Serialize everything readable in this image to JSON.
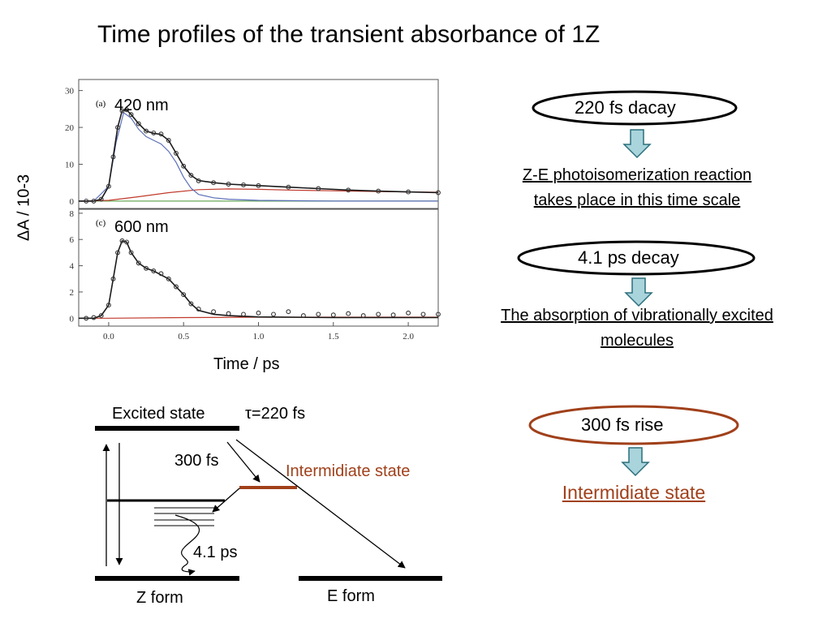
{
  "title": "Time profiles of the transient absorbance of 1Z",
  "axes": {
    "ylabel": "ΔA / 10-3",
    "xlabel": "Time / ps"
  },
  "colors": {
    "data_points": "#333333",
    "fit_total": "#1a1a1a",
    "fit_decay_component": "#5a6fb8",
    "fit_rise_component": "#c0392b",
    "baseline": "#6aaa5a",
    "arrow_fill": "#a9d4dc",
    "arrow_stroke": "#2b6f7c",
    "intermediate": "#a0401a"
  },
  "chart_data": [
    {
      "type": "line",
      "panel_tag": "(a)",
      "panel_label": "420 nm",
      "ylim": [
        -2,
        33
      ],
      "xlim": [
        -0.2,
        2.2
      ],
      "y_ticks": [
        "0",
        "10",
        "20",
        "30"
      ],
      "x_ticks": [],
      "grid": false,
      "series": [
        {
          "style": "markers",
          "x": [
            -0.15,
            -0.1,
            -0.05,
            0.0,
            0.03,
            0.06,
            0.09,
            0.12,
            0.15,
            0.2,
            0.25,
            0.3,
            0.35,
            0.4,
            0.45,
            0.5,
            0.55,
            0.6,
            0.7,
            0.8,
            0.9,
            1.0,
            1.2,
            1.4,
            1.6,
            1.8,
            2.0,
            2.2
          ],
          "y": [
            0,
            0,
            0.5,
            4,
            12,
            20,
            24.5,
            24.8,
            23.5,
            21,
            19,
            18.5,
            18.2,
            16.5,
            13,
            9.5,
            7,
            5.5,
            5,
            4.6,
            4.4,
            4.2,
            3.8,
            3.4,
            3,
            2.7,
            2.5,
            2.3
          ]
        },
        {
          "style": "line",
          "role": "fit",
          "x": [
            -0.2,
            -0.1,
            -0.05,
            0.0,
            0.03,
            0.06,
            0.09,
            0.12,
            0.15,
            0.2,
            0.25,
            0.3,
            0.35,
            0.4,
            0.45,
            0.5,
            0.55,
            0.6,
            0.7,
            0.8,
            0.9,
            1.0,
            1.2,
            1.4,
            1.6,
            1.8,
            2.0,
            2.2
          ],
          "y": [
            0,
            0,
            0.5,
            4,
            12,
            20,
            24.5,
            24.7,
            23.5,
            21,
            19,
            18.4,
            18.1,
            16.5,
            13,
            9.5,
            7,
            5.6,
            5,
            4.6,
            4.4,
            4.2,
            3.8,
            3.4,
            3,
            2.7,
            2.5,
            2.3
          ]
        },
        {
          "style": "line",
          "role": "decay",
          "x": [
            -0.2,
            -0.1,
            0.0,
            0.05,
            0.1,
            0.15,
            0.2,
            0.25,
            0.3,
            0.35,
            0.4,
            0.45,
            0.5,
            0.55,
            0.6,
            0.7,
            0.8,
            1.0,
            1.5,
            2.2
          ],
          "y": [
            0,
            0,
            4,
            16,
            24,
            22.5,
            19.5,
            17.5,
            16.5,
            15.5,
            13.5,
            10.5,
            6.5,
            3.5,
            1.8,
            0.9,
            0.5,
            0.2,
            0,
            0
          ]
        },
        {
          "style": "line",
          "role": "rise",
          "x": [
            -0.2,
            0.0,
            0.2,
            0.4,
            0.6,
            0.8,
            1.0,
            1.2,
            1.5,
            1.8,
            2.2
          ],
          "y": [
            0,
            0.2,
            1.2,
            2.3,
            3.1,
            3.3,
            3.2,
            3.0,
            2.8,
            2.6,
            2.4
          ]
        },
        {
          "style": "line",
          "role": "baseline",
          "x": [
            -0.2,
            2.2
          ],
          "y": [
            0,
            0
          ]
        }
      ]
    },
    {
      "type": "line",
      "panel_tag": "(c)",
      "panel_label": "600 nm",
      "ylim": [
        -0.6,
        8.3
      ],
      "xlim": [
        -0.2,
        2.2
      ],
      "y_ticks": [
        "0",
        "2",
        "4",
        "6",
        "8"
      ],
      "x_ticks": [
        "0.0",
        "0.5",
        "1.0",
        "1.5",
        "2.0"
      ],
      "grid": false,
      "series": [
        {
          "style": "markers",
          "x": [
            -0.15,
            -0.1,
            -0.05,
            0.0,
            0.03,
            0.06,
            0.09,
            0.12,
            0.15,
            0.2,
            0.25,
            0.3,
            0.35,
            0.4,
            0.45,
            0.5,
            0.55,
            0.6,
            0.7,
            0.8,
            0.9,
            1.0,
            1.1,
            1.2,
            1.3,
            1.4,
            1.5,
            1.6,
            1.7,
            1.8,
            1.9,
            2.0,
            2.1,
            2.2
          ],
          "y": [
            0,
            0.05,
            0.2,
            1,
            3,
            5,
            5.9,
            5.8,
            5,
            4.2,
            3.8,
            3.6,
            3.4,
            3,
            2.4,
            1.8,
            1.1,
            0.7,
            0.5,
            0.35,
            0.3,
            0.4,
            0.3,
            0.5,
            0.2,
            0.3,
            0.25,
            0.35,
            0.2,
            0.3,
            0.25,
            0.4,
            0.3,
            0.3
          ]
        },
        {
          "style": "line",
          "role": "fit",
          "x": [
            -0.2,
            -0.1,
            -0.05,
            0.0,
            0.03,
            0.06,
            0.09,
            0.12,
            0.15,
            0.2,
            0.25,
            0.3,
            0.35,
            0.4,
            0.45,
            0.5,
            0.55,
            0.6,
            0.7,
            0.8,
            1.0,
            1.5,
            2.2
          ],
          "y": [
            0,
            0,
            0.2,
            1,
            3,
            5,
            5.9,
            5.8,
            5,
            4.2,
            3.8,
            3.6,
            3.3,
            3,
            2.4,
            1.8,
            1.1,
            0.6,
            0.3,
            0.2,
            0.1,
            0.05,
            0.05
          ]
        },
        {
          "style": "line",
          "role": "rise",
          "x": [
            -0.2,
            0.0,
            0.5,
            1.0,
            1.5,
            2.2
          ],
          "y": [
            0,
            0,
            0.05,
            0.08,
            0.08,
            0.08
          ]
        }
      ]
    }
  ],
  "annotations": {
    "oval1": "220 fs dacay",
    "note1_line1": "Z-E photoisomerization reaction",
    "note1_line2": "takes place in this time scale",
    "oval2": "4.1 ps decay",
    "note2_line1": "The absorption of vibrationally excited",
    "note2_line2": "molecules",
    "oval3": "300 fs rise",
    "note3": "Intermidiate state"
  },
  "diagram": {
    "excited_state": "Excited state",
    "tau": "τ=220 fs",
    "fs300": "300 fs",
    "intermediate": "Intermidiate state",
    "ps41": "4.1 ps",
    "z_form": "Z form",
    "e_form": "E form"
  }
}
